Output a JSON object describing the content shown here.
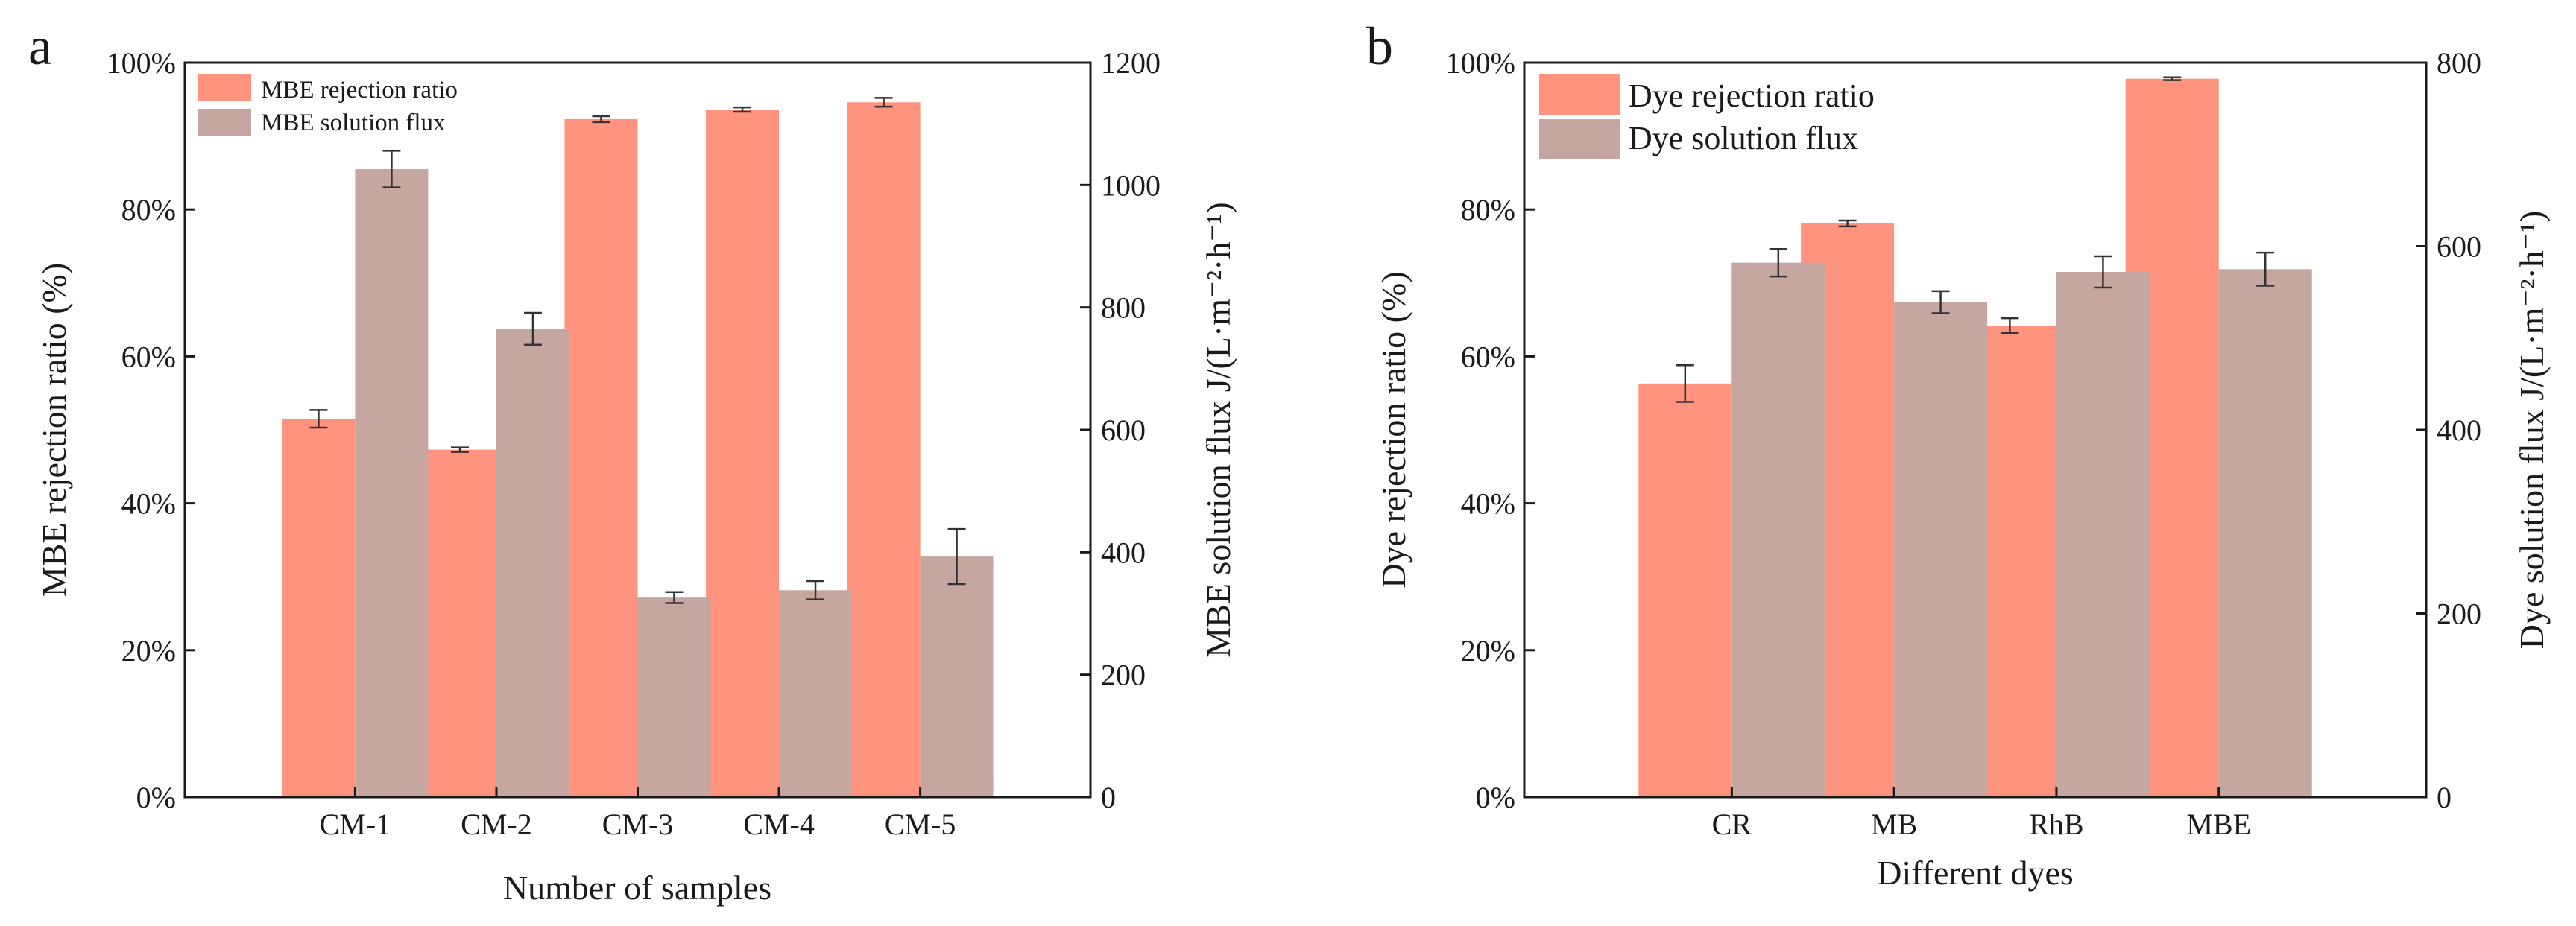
{
  "colors": {
    "rejection": "#FF937D",
    "flux": "#C6A6A0"
  },
  "chart_data": [
    {
      "panel": "a",
      "type": "bar",
      "categories": [
        "CM-1",
        "CM-2",
        "CM-3",
        "CM-4",
        "CM-5"
      ],
      "xlabel": "Number of samples",
      "ylabel": "MBE rejection ratio (%)",
      "y2label": "MBE solution flux J/(L·m⁻²·h⁻¹)",
      "ylim": [
        0,
        100
      ],
      "y2lim": [
        0,
        1200
      ],
      "yticks": [
        "0%",
        "20%",
        "40%",
        "60%",
        "80%",
        "100%"
      ],
      "y2ticks": [
        "0",
        "200",
        "400",
        "600",
        "800",
        "1000",
        "1200"
      ],
      "grid": false,
      "legend_position": "top-left",
      "series": [
        {
          "name": "MBE rejection ratio",
          "axis": "left",
          "color_key": "rejection",
          "values": [
            51.5,
            47.3,
            92.3,
            93.6,
            94.6
          ],
          "errors": [
            1.2,
            0.3,
            0.4,
            0.3,
            0.6
          ]
        },
        {
          "name": "MBE solution flux",
          "axis": "right",
          "color_key": "flux",
          "values": [
            1026,
            765,
            326,
            338,
            393
          ],
          "errors": [
            30,
            26,
            9,
            15,
            45
          ]
        }
      ]
    },
    {
      "panel": "b",
      "type": "bar",
      "categories": [
        "CR",
        "MB",
        "RhB",
        "MBE"
      ],
      "xlabel": "Different dyes",
      "ylabel": "Dye rejection ratio (%)",
      "y2label": "Dye solution flux J/(L·m⁻²·h⁻¹)",
      "ylim": [
        0,
        100
      ],
      "y2lim": [
        0,
        800
      ],
      "yticks": [
        "0%",
        "20%",
        "40%",
        "60%",
        "80%",
        "100%"
      ],
      "y2ticks": [
        "0",
        "200",
        "400",
        "600",
        "800"
      ],
      "grid": false,
      "legend_position": "top-left",
      "series": [
        {
          "name": "Dye rejection ratio",
          "axis": "left",
          "color_key": "rejection",
          "values": [
            56.3,
            78.1,
            64.2,
            97.8
          ],
          "errors": [
            2.5,
            0.4,
            1.0,
            0.2
          ]
        },
        {
          "name": "Dye solution flux",
          "axis": "right",
          "color_key": "flux",
          "values": [
            582,
            539,
            572,
            575
          ],
          "errors": [
            15,
            12,
            17,
            18
          ]
        }
      ]
    }
  ]
}
